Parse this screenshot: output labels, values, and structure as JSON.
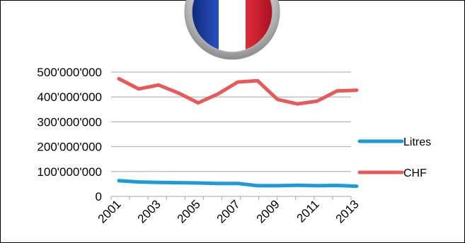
{
  "chart_data": {
    "type": "line",
    "title": "",
    "xlabel": "",
    "ylabel": "",
    "x": [
      2001,
      2002,
      2003,
      2004,
      2005,
      2006,
      2007,
      2008,
      2009,
      2010,
      2011,
      2012,
      2013
    ],
    "x_tick_labels": [
      "2001",
      "2003",
      "2005",
      "2007",
      "2009",
      "2011",
      "2013"
    ],
    "y_tick_labels": [
      "0",
      "100'000'000",
      "200'000'000",
      "300'000'000",
      "400'000'000",
      "500'000'000"
    ],
    "ylim": [
      0,
      500000000
    ],
    "grid": "horizontal",
    "legend_position": "right",
    "series": [
      {
        "name": "Litres",
        "color": "#1b9bd7",
        "values": [
          63000000,
          58000000,
          56000000,
          55000000,
          54000000,
          52000000,
          52000000,
          43000000,
          43000000,
          45000000,
          43000000,
          44000000,
          41000000
        ]
      },
      {
        "name": "CHF",
        "color": "#e85a5a",
        "values": [
          473000000,
          432000000,
          448000000,
          416000000,
          376000000,
          412000000,
          460000000,
          465000000,
          390000000,
          372000000,
          383000000,
          424000000,
          427000000
        ]
      }
    ]
  },
  "decoration": {
    "flag": "france-flag-emblem",
    "flag_colors": [
      "#1e3a8a",
      "#ffffff",
      "#c8102e"
    ]
  }
}
